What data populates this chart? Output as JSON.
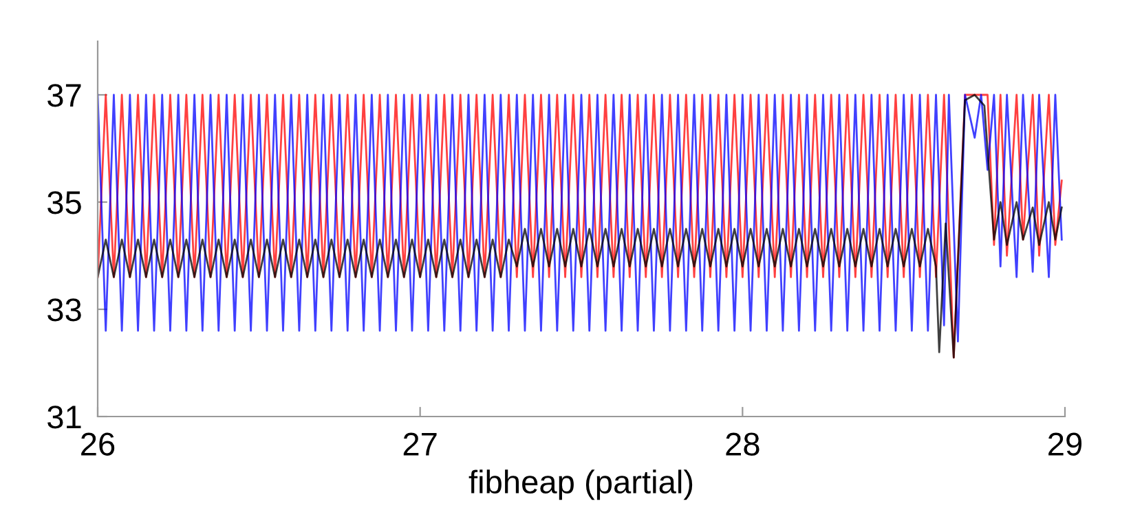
{
  "chart_data": {
    "type": "line",
    "xlabel": "fibheap (partial)",
    "xlim": [
      26,
      29
    ],
    "xticks": [
      26,
      27,
      28,
      29
    ],
    "ylim": [
      31,
      38
    ],
    "yticks": [
      31,
      33,
      35,
      37
    ],
    "grid": false,
    "legend": false,
    "marker": "none",
    "line_style": "solid",
    "series": [
      {
        "color": "#ff0000",
        "x": [
          26.0,
          26.025,
          26.05,
          26.075,
          26.1,
          26.125,
          26.15,
          26.175,
          26.2,
          26.225,
          26.25,
          26.275,
          26.3,
          26.325,
          26.35,
          26.375,
          26.4,
          26.425,
          26.45,
          26.475,
          26.5,
          26.525,
          26.55,
          26.575,
          26.6,
          26.625,
          26.65,
          26.675,
          26.7,
          26.725,
          26.75,
          26.775,
          26.8,
          26.825,
          26.85,
          26.875,
          26.9,
          26.925,
          26.95,
          26.975,
          27.0,
          27.025,
          27.05,
          27.075,
          27.1,
          27.125,
          27.15,
          27.175,
          27.2,
          27.225,
          27.25,
          27.275,
          27.3,
          27.325,
          27.35,
          27.375,
          27.4,
          27.425,
          27.45,
          27.475,
          27.5,
          27.525,
          27.55,
          27.575,
          27.6,
          27.625,
          27.65,
          27.675,
          27.7,
          27.725,
          27.75,
          27.775,
          27.8,
          27.825,
          27.85,
          27.875,
          27.9,
          27.925,
          27.95,
          27.975,
          28.0,
          28.025,
          28.05,
          28.075,
          28.1,
          28.125,
          28.15,
          28.175,
          28.2,
          28.225,
          28.25,
          28.275,
          28.3,
          28.325,
          28.35,
          28.375,
          28.4,
          28.425,
          28.45,
          28.475,
          28.5,
          28.525,
          28.55,
          28.575,
          28.6,
          28.625,
          28.655,
          28.69,
          28.72,
          28.76,
          28.78,
          28.8,
          28.82,
          28.85,
          28.87,
          28.9,
          28.92,
          28.95,
          28.97,
          28.99
        ],
        "values": [
          33.6,
          37,
          33.6,
          37,
          33.6,
          37,
          33.6,
          37,
          33.6,
          37,
          33.6,
          37,
          33.6,
          37,
          33.6,
          37,
          33.6,
          37,
          33.6,
          37,
          33.6,
          37,
          33.6,
          37,
          33.6,
          37,
          33.6,
          37,
          33.6,
          37,
          33.6,
          37,
          33.6,
          37,
          33.6,
          37,
          33.6,
          37,
          33.6,
          37,
          33.6,
          37,
          33.6,
          37,
          33.6,
          37,
          33.6,
          37,
          33.6,
          37,
          33.6,
          37,
          33.6,
          37,
          33.6,
          37,
          33.6,
          37,
          33.6,
          37,
          33.6,
          37,
          33.6,
          37,
          33.6,
          37,
          33.6,
          37,
          33.6,
          37,
          33.6,
          37,
          33.6,
          37,
          33.6,
          37,
          33.6,
          37,
          33.6,
          37,
          33.6,
          37,
          33.6,
          37,
          33.6,
          37,
          33.6,
          37,
          33.6,
          37,
          33.6,
          37,
          33.6,
          37,
          33.6,
          37,
          33.6,
          37,
          33.6,
          37,
          33.6,
          37,
          33.6,
          37,
          33.6,
          37,
          32.1,
          37,
          37,
          37,
          34.2,
          37,
          34.0,
          37,
          34.3,
          37,
          34.0,
          37,
          34.2,
          35.4
        ]
      },
      {
        "color": "#0000ff",
        "x": [
          26.0,
          26.025,
          26.05,
          26.075,
          26.1,
          26.125,
          26.15,
          26.175,
          26.2,
          26.225,
          26.25,
          26.275,
          26.3,
          26.325,
          26.35,
          26.375,
          26.4,
          26.425,
          26.45,
          26.475,
          26.5,
          26.525,
          26.55,
          26.575,
          26.6,
          26.625,
          26.65,
          26.675,
          26.7,
          26.725,
          26.75,
          26.775,
          26.8,
          26.825,
          26.85,
          26.875,
          26.9,
          26.925,
          26.95,
          26.975,
          27.0,
          27.025,
          27.05,
          27.075,
          27.1,
          27.125,
          27.15,
          27.175,
          27.2,
          27.225,
          27.25,
          27.275,
          27.3,
          27.325,
          27.35,
          27.375,
          27.4,
          27.425,
          27.45,
          27.475,
          27.5,
          27.525,
          27.55,
          27.575,
          27.6,
          27.625,
          27.65,
          27.675,
          27.7,
          27.725,
          27.75,
          27.775,
          27.8,
          27.825,
          27.85,
          27.875,
          27.9,
          27.925,
          27.95,
          27.975,
          28.0,
          28.025,
          28.05,
          28.075,
          28.1,
          28.125,
          28.15,
          28.175,
          28.2,
          28.225,
          28.25,
          28.275,
          28.3,
          28.325,
          28.35,
          28.375,
          28.4,
          28.425,
          28.45,
          28.475,
          28.5,
          28.525,
          28.55,
          28.575,
          28.6,
          28.625,
          28.64,
          28.668,
          28.69,
          28.72,
          28.74,
          28.76,
          28.78,
          28.8,
          28.82,
          28.85,
          28.87,
          28.9,
          28.92,
          28.95,
          28.97,
          28.99
        ],
        "values": [
          37,
          32.6,
          37,
          32.6,
          37,
          32.6,
          37,
          32.6,
          37,
          32.6,
          37,
          32.6,
          37,
          32.6,
          37,
          32.6,
          37,
          32.6,
          37,
          32.6,
          37,
          32.6,
          37,
          32.6,
          37,
          32.6,
          37,
          32.6,
          37,
          32.6,
          37,
          32.6,
          37,
          32.6,
          37,
          32.6,
          37,
          32.6,
          37,
          32.6,
          37,
          32.6,
          37,
          32.6,
          37,
          32.6,
          37,
          32.6,
          37,
          32.6,
          37,
          32.6,
          37,
          32.6,
          37,
          32.6,
          37,
          32.6,
          37,
          32.6,
          37,
          32.6,
          37,
          32.6,
          37,
          32.6,
          37,
          32.6,
          37,
          32.6,
          37,
          32.6,
          37,
          32.6,
          37,
          32.6,
          37,
          32.6,
          37,
          32.6,
          37,
          32.6,
          37,
          32.6,
          37,
          32.6,
          37,
          32.6,
          37,
          32.6,
          37,
          32.6,
          37,
          32.6,
          37,
          32.6,
          37,
          32.6,
          37,
          32.6,
          37,
          32.6,
          37,
          32.6,
          37,
          32.7,
          37,
          32.4,
          37,
          36.2,
          37,
          35.6,
          37,
          33.8,
          37,
          33.6,
          37,
          33.7,
          37,
          33.6,
          37,
          34.3
        ]
      },
      {
        "color": "#000000",
        "x": [
          26.0,
          26.025,
          26.05,
          26.075,
          26.1,
          26.125,
          26.15,
          26.175,
          26.2,
          26.225,
          26.25,
          26.275,
          26.3,
          26.325,
          26.35,
          26.375,
          26.4,
          26.425,
          26.45,
          26.475,
          26.5,
          26.525,
          26.55,
          26.575,
          26.6,
          26.625,
          26.65,
          26.675,
          26.7,
          26.725,
          26.75,
          26.775,
          26.8,
          26.825,
          26.85,
          26.875,
          26.9,
          26.925,
          26.95,
          26.975,
          27.0,
          27.025,
          27.05,
          27.075,
          27.1,
          27.125,
          27.15,
          27.175,
          27.2,
          27.225,
          27.25,
          27.275,
          27.3,
          27.325,
          27.35,
          27.375,
          27.4,
          27.425,
          27.45,
          27.475,
          27.5,
          27.525,
          27.55,
          27.575,
          27.6,
          27.625,
          27.65,
          27.675,
          27.7,
          27.725,
          27.75,
          27.775,
          27.8,
          27.825,
          27.85,
          27.875,
          27.9,
          27.925,
          27.95,
          27.975,
          28.0,
          28.025,
          28.05,
          28.075,
          28.1,
          28.125,
          28.15,
          28.175,
          28.2,
          28.225,
          28.25,
          28.275,
          28.3,
          28.325,
          28.35,
          28.375,
          28.4,
          28.425,
          28.45,
          28.475,
          28.5,
          28.525,
          28.55,
          28.575,
          28.6,
          28.61,
          28.63,
          28.655,
          28.69,
          28.72,
          28.75,
          28.78,
          28.8,
          28.82,
          28.85,
          28.87,
          28.9,
          28.92,
          28.95,
          28.97,
          28.99
        ],
        "values": [
          33.6,
          34.3,
          33.6,
          34.3,
          33.6,
          34.3,
          33.6,
          34.3,
          33.6,
          34.3,
          33.6,
          34.3,
          33.6,
          34.3,
          33.6,
          34.3,
          33.6,
          34.3,
          33.6,
          34.3,
          33.6,
          34.3,
          33.6,
          34.3,
          33.6,
          34.3,
          33.6,
          34.3,
          33.6,
          34.3,
          33.6,
          34.3,
          33.6,
          34.3,
          33.6,
          34.3,
          33.6,
          34.3,
          33.6,
          34.3,
          33.6,
          34.3,
          33.6,
          34.3,
          33.6,
          34.3,
          33.6,
          34.3,
          33.6,
          34.3,
          33.6,
          34.3,
          33.8,
          34.5,
          33.8,
          34.5,
          33.8,
          34.5,
          33.8,
          34.5,
          33.8,
          34.5,
          33.8,
          34.5,
          33.8,
          34.5,
          33.8,
          34.5,
          33.8,
          34.5,
          33.8,
          34.5,
          33.8,
          34.5,
          33.8,
          34.5,
          33.8,
          34.5,
          33.8,
          34.5,
          33.8,
          34.5,
          33.8,
          34.5,
          33.8,
          34.5,
          33.8,
          34.5,
          33.8,
          34.5,
          33.8,
          34.5,
          33.8,
          34.5,
          33.8,
          34.5,
          33.8,
          34.5,
          33.8,
          34.5,
          33.8,
          34.5,
          33.8,
          34.5,
          33.8,
          32.2,
          34.6,
          32.1,
          36.9,
          37,
          36.8,
          34.3,
          35.0,
          34.2,
          35.0,
          34.3,
          34.9,
          34.2,
          35.0,
          34.3,
          34.9
        ]
      }
    ]
  }
}
